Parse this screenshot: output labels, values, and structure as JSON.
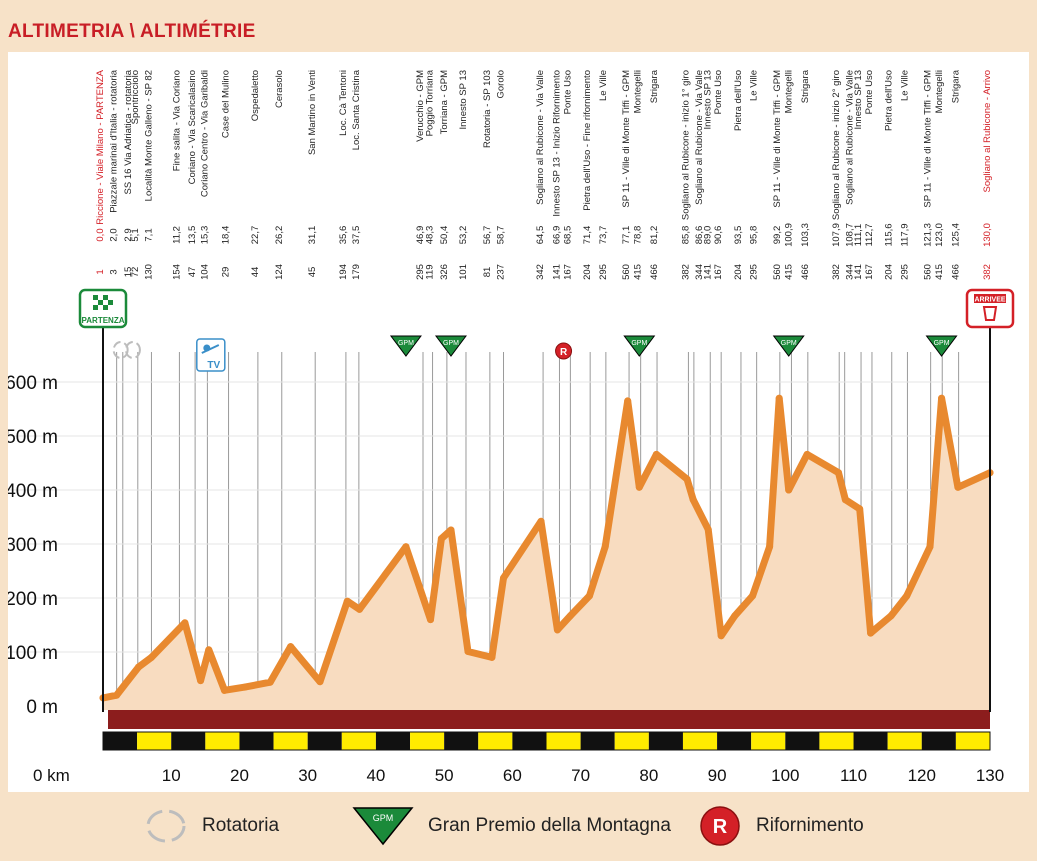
{
  "title": "ALTIMETRIA \\ ALTIMÉTRIE",
  "chart_data": {
    "type": "area",
    "xlabel": "",
    "ylabel": "",
    "x_unit": "km",
    "y_unit": "m",
    "xlim": [
      0,
      130
    ],
    "ylim": [
      0,
      650
    ],
    "x_ticks": [
      0,
      10,
      20,
      30,
      40,
      50,
      60,
      70,
      80,
      90,
      100,
      110,
      120,
      130
    ],
    "x_tick_labels": [
      "0 km",
      "10",
      "20",
      "30",
      "40",
      "50",
      "60",
      "70",
      "80",
      "90",
      "100",
      "110",
      "120",
      "130"
    ],
    "y_ticks": [
      0,
      100,
      200,
      300,
      400,
      500,
      600
    ],
    "y_tick_labels": [
      "0 m",
      "100 m",
      "200 m",
      "300 m",
      "400 m",
      "500 m",
      "600 m"
    ],
    "profile": {
      "x": [
        0,
        2,
        5.2,
        7.1,
        12,
        14.3,
        15.5,
        17.8,
        20.8,
        24.5,
        27.5,
        31.8,
        35.8,
        37.6,
        44.4,
        48,
        49.6,
        51,
        53.5,
        57,
        58.7,
        64.2,
        66.6,
        68.5,
        71.3,
        73.6,
        76.9,
        78.6,
        81.1,
        85.6,
        86.5,
        88.7,
        90.6,
        92.6,
        95.2,
        97.7,
        99.1,
        100.5,
        103.2,
        107.8,
        108.8,
        110.9,
        112.5,
        115.5,
        117.8,
        121.2,
        122.9,
        125.3,
        130
      ],
      "y": [
        15,
        20,
        72,
        90,
        154,
        47,
        104,
        29,
        35,
        44,
        110,
        45,
        194,
        179,
        295,
        160,
        310,
        326,
        101,
        90,
        237,
        342,
        141,
        167,
        204,
        295,
        565,
        405,
        466,
        420,
        382,
        327,
        130,
        167,
        204,
        295,
        570,
        400,
        466,
        432,
        382,
        365,
        135,
        167,
        204,
        295,
        570,
        405,
        432
      ]
    },
    "waypoints": [
      {
        "name": "Riccione - Viale Milano - PARTENZA",
        "km": "0,0",
        "alt": "1",
        "red": true
      },
      {
        "name": "Piazzale marinai d'Italia - rotatoria",
        "km": "2,0",
        "alt": "3"
      },
      {
        "name": "SS 16 Via Adriatica - rotatoria",
        "km": "2,9",
        "alt": "15"
      },
      {
        "name": "Spontricciolo",
        "km": "5,1",
        "alt": "72"
      },
      {
        "name": "Località Monte Galleno - SP 82",
        "km": "7,1",
        "alt": "130"
      },
      {
        "name": "Fine salita - Via Coriano",
        "km": "11,2",
        "alt": "154"
      },
      {
        "name": "Coriano - Via Scaricalasino",
        "km": "13,5",
        "alt": "47"
      },
      {
        "name": "Coriano Centro - Via Garibaldi",
        "km": "15,3",
        "alt": "104"
      },
      {
        "name": "Case del Mulino",
        "km": "18,4",
        "alt": "29"
      },
      {
        "name": "Ospedaletto",
        "km": "22,7",
        "alt": "44"
      },
      {
        "name": "Cerasolo",
        "km": "26,2",
        "alt": "124"
      },
      {
        "name": "San Martino in Venti",
        "km": "31,1",
        "alt": "45"
      },
      {
        "name": "Loc. Cà Tentoni",
        "km": "35,6",
        "alt": "194"
      },
      {
        "name": "Loc. Santa Cristina",
        "km": "37,5",
        "alt": "179"
      },
      {
        "name": "Verucchio - GPM",
        "km": "46,9",
        "alt": "295"
      },
      {
        "name": "Poggio Torriana",
        "km": "48,3",
        "alt": "119"
      },
      {
        "name": "Torriana - GPM",
        "km": "50,4",
        "alt": "326"
      },
      {
        "name": "Innesto SP 13",
        "km": "53,2",
        "alt": "101"
      },
      {
        "name": "Rotatoria - SP 103",
        "km": "56,7",
        "alt": "81"
      },
      {
        "name": "Gorolo",
        "km": "58,7",
        "alt": "237"
      },
      {
        "name": "Sogliano al Rubicone - Via Valle",
        "km": "64,5",
        "alt": "342"
      },
      {
        "name": "Innesto SP 13 - Inizio Rifornimento",
        "km": "66,9",
        "alt": "141"
      },
      {
        "name": "Ponte Uso",
        "km": "68,5",
        "alt": "167"
      },
      {
        "name": "Pietra dell'Uso - Fine rifornimento",
        "km": "71,4",
        "alt": "204"
      },
      {
        "name": "Le Ville",
        "km": "73,7",
        "alt": "295"
      },
      {
        "name": "SP 11 - Ville di Monte Tiffi - GPM",
        "km": "77,1",
        "alt": "560"
      },
      {
        "name": "Montegelli",
        "km": "78,8",
        "alt": "415"
      },
      {
        "name": "Strigara",
        "km": "81,2",
        "alt": "466"
      },
      {
        "name": "Sogliano al Rubicone - inizio 1° giro",
        "km": "85,8",
        "alt": "382"
      },
      {
        "name": "Sogliano al Rubicone - Via Valle",
        "km": "86,6",
        "alt": "344"
      },
      {
        "name": "Innesto SP 13",
        "km": "89,0",
        "alt": "141"
      },
      {
        "name": "Ponte Uso",
        "km": "90,6",
        "alt": "167"
      },
      {
        "name": "Pietra dell'Uso",
        "km": "93,5",
        "alt": "204"
      },
      {
        "name": "Le Ville",
        "km": "95,8",
        "alt": "295"
      },
      {
        "name": "SP 11 - Ville di Monte Tiffi - GPM",
        "km": "99,2",
        "alt": "560"
      },
      {
        "name": "Montegelli",
        "km": "100,9",
        "alt": "415"
      },
      {
        "name": "Strigara",
        "km": "103,3",
        "alt": "466"
      },
      {
        "name": "Sogliano al Rubicone - inizio 2° giro",
        "km": "107,9",
        "alt": "382"
      },
      {
        "name": "Sogliano al Rubicone - Via Valle",
        "km": "108,7",
        "alt": "344"
      },
      {
        "name": "Innesto SP 13",
        "km": "111,1",
        "alt": "141"
      },
      {
        "name": "Ponte Uso",
        "km": "112,7",
        "alt": "167"
      },
      {
        "name": "Pietra dell'Uso",
        "km": "115,6",
        "alt": "204"
      },
      {
        "name": "Le Ville",
        "km": "117,9",
        "alt": "295"
      },
      {
        "name": "SP 11 - Ville di Monte Tiffi - GPM",
        "km": "121,3",
        "alt": "560"
      },
      {
        "name": "Montegelli",
        "km": "123,0",
        "alt": "415"
      },
      {
        "name": "Strigara",
        "km": "125,4",
        "alt": "466"
      },
      {
        "name": "Sogliano al Rubicone - Arrivo",
        "km": "130,0",
        "alt": "382",
        "red": true
      }
    ],
    "start_label": "PARTENZA",
    "finish_label": "ARRIVEE",
    "gpm_label": "GPM",
    "tv_label": "TV",
    "refuel_label": "R",
    "gpm_km": [
      44.4,
      51,
      78.6,
      100.5,
      122.9
    ],
    "refuel_km": [
      67.5
    ],
    "roundabout_km": [
      2,
      3.8
    ],
    "tv_km": [
      15.8
    ],
    "colors": {
      "profile_line": "#e8892f",
      "profile_fill": "#f8dcc0",
      "road_band": "#8c1d1d",
      "km_band_dark": "#111111",
      "km_band_light": "#ffec00",
      "gpm_green": "#1b8a3a",
      "red": "#d42027",
      "waypoint_line": "#9a9a9a",
      "axis_text": "#111111"
    }
  },
  "legend": [
    {
      "icon": "roundabout-icon",
      "label": "Rotatoria"
    },
    {
      "icon": "gpm-icon",
      "label": "Gran Premio della Montagna"
    },
    {
      "icon": "refuel-icon",
      "label": "Rifornimento"
    }
  ]
}
